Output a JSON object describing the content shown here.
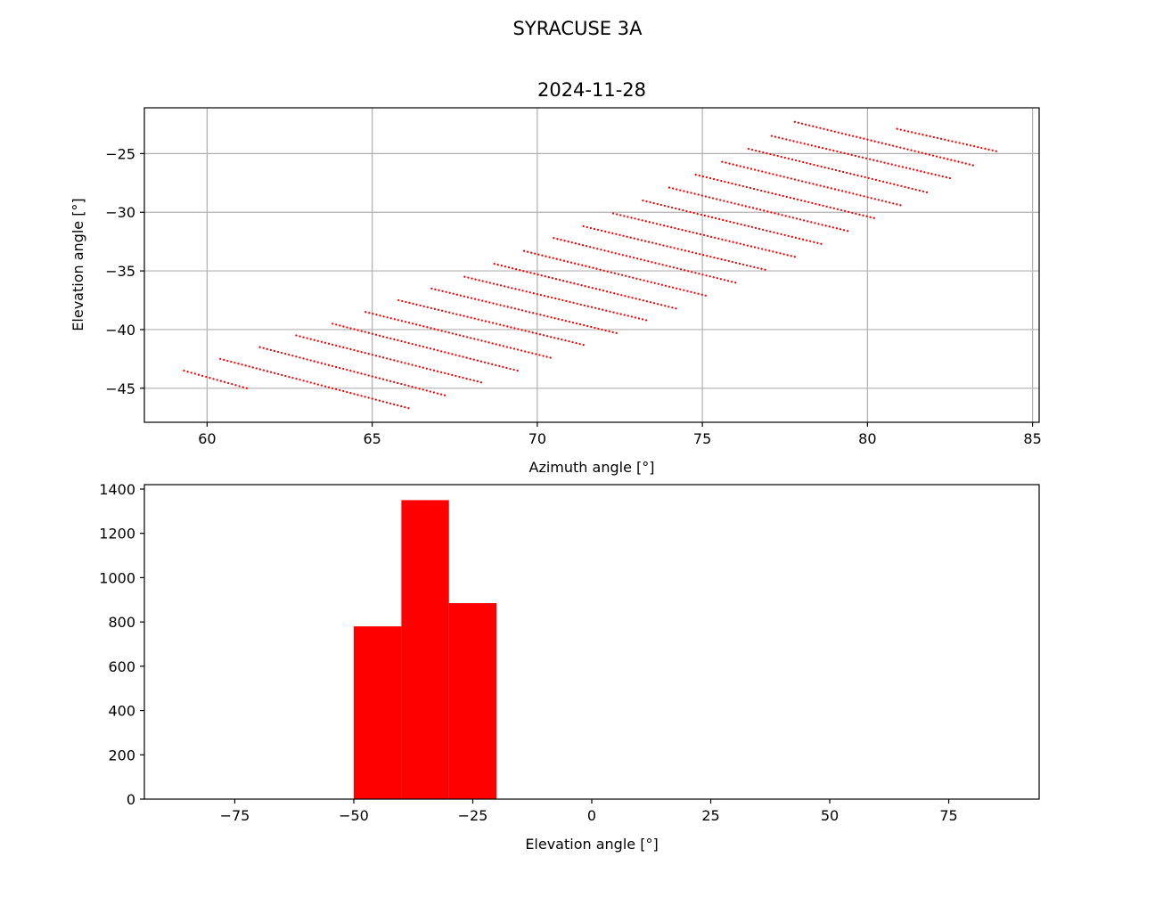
{
  "figure": {
    "suptitle": "SYRACUSE 3A",
    "colors": {
      "series": "#ff0000",
      "grid": "#b0b0b0"
    }
  },
  "chart_data": [
    {
      "type": "scatter",
      "title": "2024-11-28",
      "xlabel": "Azimuth angle [°]",
      "ylabel": "Elevation angle [°]",
      "xlim": [
        58.1,
        85.2
      ],
      "ylim": [
        -47.9,
        -21.1
      ],
      "xticks": [
        60,
        65,
        70,
        75,
        80,
        85
      ],
      "yticks": [
        -45,
        -40,
        -35,
        -30,
        -25
      ],
      "xtick_labels": [
        "60",
        "65",
        "70",
        "75",
        "80",
        "85"
      ],
      "ytick_labels": [
        "−45",
        "−40",
        "−35",
        "−30",
        "−25"
      ],
      "grid": true,
      "point_color": "#ff0000",
      "tracks": [
        {
          "start": [
            59.3,
            -43.5
          ],
          "end": [
            61.2,
            -45.0
          ]
        },
        {
          "start": [
            60.4,
            -42.5
          ],
          "end": [
            66.1,
            -46.7
          ]
        },
        {
          "start": [
            61.6,
            -41.5
          ],
          "end": [
            67.2,
            -45.6
          ]
        },
        {
          "start": [
            62.7,
            -40.5
          ],
          "end": [
            68.3,
            -44.5
          ]
        },
        {
          "start": [
            63.8,
            -39.5
          ],
          "end": [
            69.4,
            -43.5
          ]
        },
        {
          "start": [
            64.8,
            -38.5
          ],
          "end": [
            70.4,
            -42.4
          ]
        },
        {
          "start": [
            65.8,
            -37.5
          ],
          "end": [
            71.4,
            -41.3
          ]
        },
        {
          "start": [
            66.8,
            -36.5
          ],
          "end": [
            72.4,
            -40.3
          ]
        },
        {
          "start": [
            67.8,
            -35.5
          ],
          "end": [
            73.3,
            -39.2
          ]
        },
        {
          "start": [
            68.7,
            -34.4
          ],
          "end": [
            74.2,
            -38.2
          ]
        },
        {
          "start": [
            69.6,
            -33.3
          ],
          "end": [
            75.1,
            -37.1
          ]
        },
        {
          "start": [
            70.5,
            -32.2
          ],
          "end": [
            76.0,
            -36.0
          ]
        },
        {
          "start": [
            71.4,
            -31.2
          ],
          "end": [
            76.9,
            -34.9
          ]
        },
        {
          "start": [
            72.3,
            -30.1
          ],
          "end": [
            77.8,
            -33.8
          ]
        },
        {
          "start": [
            73.2,
            -29.0
          ],
          "end": [
            78.6,
            -32.7
          ]
        },
        {
          "start": [
            74.0,
            -27.9
          ],
          "end": [
            79.4,
            -31.6
          ]
        },
        {
          "start": [
            74.8,
            -26.8
          ],
          "end": [
            80.2,
            -30.5
          ]
        },
        {
          "start": [
            75.6,
            -25.7
          ],
          "end": [
            81.0,
            -29.4
          ]
        },
        {
          "start": [
            76.4,
            -24.6
          ],
          "end": [
            81.8,
            -28.3
          ]
        },
        {
          "start": [
            77.1,
            -23.5
          ],
          "end": [
            82.5,
            -27.1
          ]
        },
        {
          "start": [
            77.8,
            -22.3
          ],
          "end": [
            83.2,
            -26.0
          ]
        },
        {
          "start": [
            80.9,
            -22.9
          ],
          "end": [
            83.9,
            -24.8
          ]
        }
      ]
    },
    {
      "type": "bar",
      "xlabel": "Elevation angle [°]",
      "ylabel": "",
      "xlim": [
        -94,
        94
      ],
      "ylim": [
        0,
        1420
      ],
      "xticks": [
        -75,
        -50,
        -25,
        0,
        25,
        50,
        75
      ],
      "yticks": [
        0,
        200,
        400,
        600,
        800,
        1000,
        1200,
        1400
      ],
      "xtick_labels": [
        "−75",
        "−50",
        "−25",
        "0",
        "25",
        "50",
        "75"
      ],
      "ytick_labels": [
        "0",
        "200",
        "400",
        "600",
        "800",
        "1000",
        "1200",
        "1400"
      ],
      "grid": false,
      "bar_color": "#ff0000",
      "bins": [
        {
          "from": -50,
          "to": -40,
          "value": 780
        },
        {
          "from": -40,
          "to": -30,
          "value": 1350
        },
        {
          "from": -30,
          "to": -20,
          "value": 885
        }
      ]
    }
  ]
}
